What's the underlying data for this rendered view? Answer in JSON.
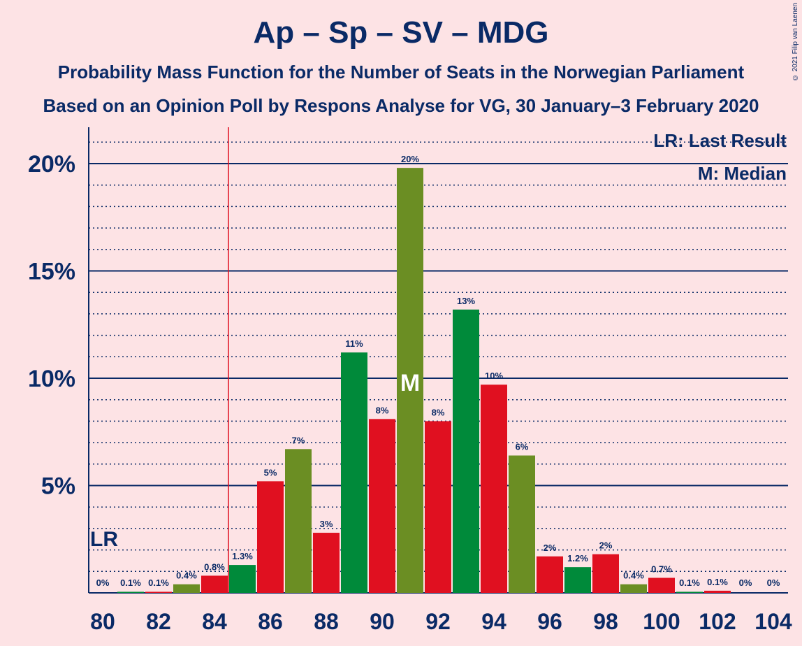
{
  "chart_data": {
    "type": "bar",
    "title": "Ap – Sp – SV – MDG",
    "subtitle": "Probability Mass Function for the Number of Seats in the Norwegian Parliament",
    "subtitle2": "Based on an Opinion Poll by Respons Analyse for VG, 30 January–3 February 2020",
    "copyright": "© 2021 Filip van Laenen",
    "x": [
      80,
      81,
      82,
      83,
      84,
      85,
      86,
      87,
      88,
      89,
      90,
      91,
      92,
      93,
      94,
      95,
      96,
      97,
      98,
      99,
      100,
      101,
      102,
      103,
      104
    ],
    "values": [
      0,
      0.05,
      0.05,
      0.4,
      0.8,
      1.3,
      5.2,
      6.7,
      2.8,
      11.2,
      8.1,
      19.8,
      8.0,
      13.2,
      9.7,
      6.4,
      1.7,
      1.2,
      1.8,
      0.4,
      0.7,
      0.05,
      0.1,
      0,
      0
    ],
    "data_labels": [
      "0%",
      "0.1%",
      "0.1%",
      "0.4%",
      "0.8%",
      "1.3%",
      "5%",
      "7%",
      "3%",
      "11%",
      "8%",
      "20%",
      "8%",
      "13%",
      "10%",
      "6%",
      "2%",
      "1.2%",
      "2%",
      "0.4%",
      "0.7%",
      "0.1%",
      "0.1%",
      "0%",
      "0%"
    ],
    "x_ticks": [
      "80",
      "82",
      "84",
      "86",
      "88",
      "90",
      "92",
      "94",
      "96",
      "98",
      "100",
      "102",
      "104"
    ],
    "y_ticks": [
      "5%",
      "10%",
      "15%",
      "20%"
    ],
    "ylim": [
      0,
      21.5
    ],
    "grid": true,
    "last_result": 85,
    "last_result_marker": "LR",
    "median": 91,
    "median_marker": "M",
    "legend": {
      "position": "top-right",
      "entries": [
        "LR: Last Result",
        "M: Median"
      ]
    },
    "colors": {
      "background": "#FDE3E5",
      "text": "#0A2A66",
      "red": "#E01020",
      "dark_green": "#008A3A",
      "olive_green": "#6B8E23",
      "last_result_line": "#E01020"
    },
    "bar_colors": [
      "none",
      "#008A3A",
      "#E01020",
      "#6B8E23",
      "#E01020",
      "#008A3A",
      "#E01020",
      "#6B8E23",
      "#E01020",
      "#008A3A",
      "#E01020",
      "#6B8E23",
      "#E01020",
      "#008A3A",
      "#E01020",
      "#6B8E23",
      "#E01020",
      "#008A3A",
      "#E01020",
      "#6B8E23",
      "#E01020",
      "#008A3A",
      "#E01020",
      "#6B8E23",
      "none"
    ]
  }
}
